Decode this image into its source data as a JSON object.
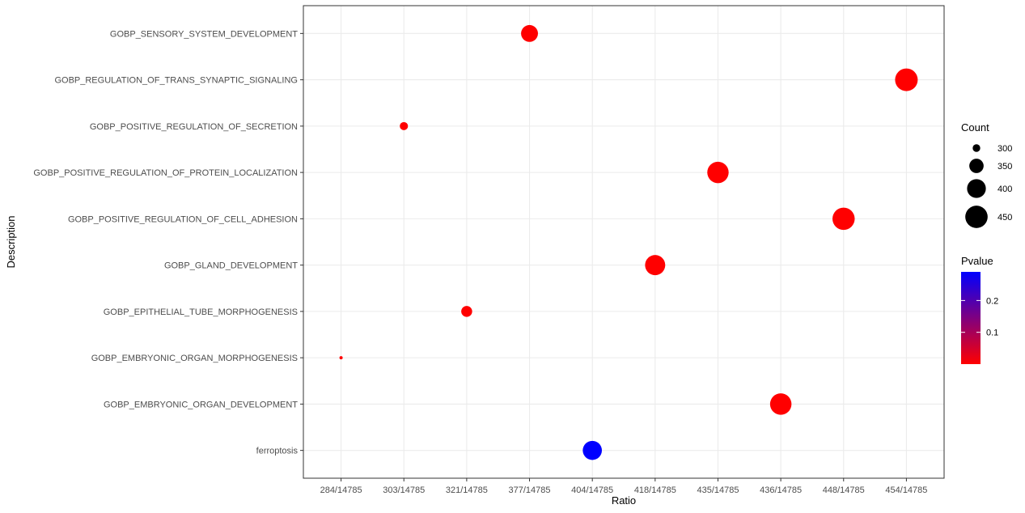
{
  "chart_data": {
    "type": "scatter",
    "xlabel": "Ratio",
    "ylabel": "Description",
    "x_categories": [
      "284/14785",
      "303/14785",
      "321/14785",
      "377/14785",
      "404/14785",
      "418/14785",
      "435/14785",
      "436/14785",
      "448/14785",
      "454/14785"
    ],
    "y_categories": [
      "ferroptosis",
      "GOBP_EMBRYONIC_ORGAN_DEVELOPMENT",
      "GOBP_EMBRYONIC_ORGAN_MORPHOGENESIS",
      "GOBP_EPITHELIAL_TUBE_MORPHOGENESIS",
      "GOBP_GLAND_DEVELOPMENT",
      "GOBP_POSITIVE_REGULATION_OF_CELL_ADHESION",
      "GOBP_POSITIVE_REGULATION_OF_PROTEIN_LOCALIZATION",
      "GOBP_POSITIVE_REGULATION_OF_SECRETION",
      "GOBP_REGULATION_OF_TRANS_SYNAPTIC_SIGNALING",
      "GOBP_SENSORY_SYSTEM_DEVELOPMENT"
    ],
    "points": [
      {
        "description": "GOBP_SENSORY_SYSTEM_DEVELOPMENT",
        "ratio": "377/14785",
        "count": 377,
        "pvalue": 0.0
      },
      {
        "description": "GOBP_REGULATION_OF_TRANS_SYNAPTIC_SIGNALING",
        "ratio": "454/14785",
        "count": 454,
        "pvalue": 0.0
      },
      {
        "description": "GOBP_POSITIVE_REGULATION_OF_SECRETION",
        "ratio": "303/14785",
        "count": 303,
        "pvalue": 0.0
      },
      {
        "description": "GOBP_POSITIVE_REGULATION_OF_PROTEIN_LOCALIZATION",
        "ratio": "435/14785",
        "count": 435,
        "pvalue": 0.0
      },
      {
        "description": "GOBP_POSITIVE_REGULATION_OF_CELL_ADHESION",
        "ratio": "448/14785",
        "count": 448,
        "pvalue": 0.0
      },
      {
        "description": "GOBP_GLAND_DEVELOPMENT",
        "ratio": "418/14785",
        "count": 418,
        "pvalue": 0.0
      },
      {
        "description": "GOBP_EPITHELIAL_TUBE_MORPHOGENESIS",
        "ratio": "321/14785",
        "count": 321,
        "pvalue": 0.0
      },
      {
        "description": "GOBP_EMBRYONIC_ORGAN_MORPHOGENESIS",
        "ratio": "284/14785",
        "count": 284,
        "pvalue": 0.0
      },
      {
        "description": "GOBP_EMBRYONIC_ORGAN_DEVELOPMENT",
        "ratio": "436/14785",
        "count": 436,
        "pvalue": 0.0
      },
      {
        "description": "ferroptosis",
        "ratio": "404/14785",
        "count": 404,
        "pvalue": 0.29
      }
    ],
    "size_legend": {
      "title": "Count",
      "breaks": [
        300,
        350,
        400,
        450
      ],
      "range": [
        284,
        454
      ]
    },
    "color_legend": {
      "title": "Pvalue",
      "breaks": [
        0.1,
        0.2
      ],
      "range": [
        0.0,
        0.29
      ],
      "low_color": "#ff0000",
      "high_color": "#0000ff"
    },
    "grid": true,
    "legend_position": "right"
  }
}
